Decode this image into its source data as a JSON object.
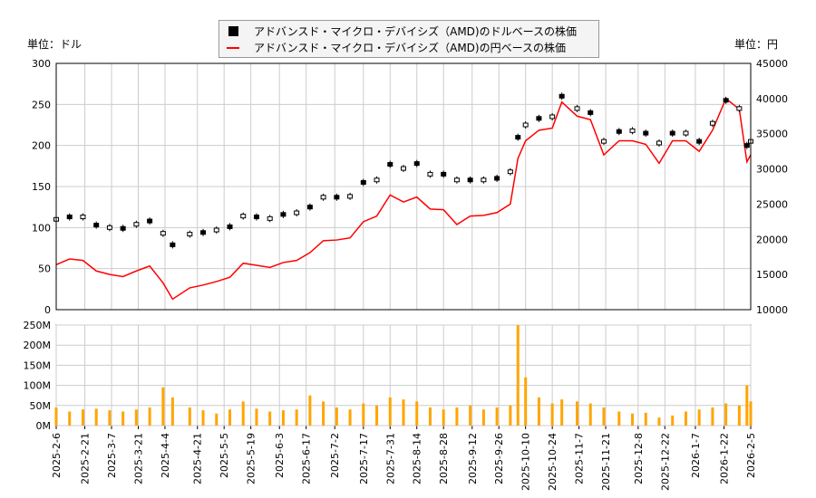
{
  "chart_data": {
    "type": "line",
    "left_unit": "単位：ドル",
    "right_unit": "単位：円",
    "legend": [
      {
        "name": "アドバンスド・マイクロ・デバイシズ（AMD)のドルベースの株価",
        "color": "#000000"
      },
      {
        "name": "アドバンスド・マイクロ・デバイシズ（AMD)の円ベースの株価",
        "color": "#ff0000"
      }
    ],
    "y_left": {
      "range": [
        0,
        300
      ],
      "ticks": [
        0,
        50,
        100,
        150,
        200,
        250,
        300
      ]
    },
    "y_right": {
      "range": [
        10000,
        45000
      ],
      "ticks": [
        10000,
        15000,
        20000,
        25000,
        30000,
        35000,
        40000,
        45000
      ]
    },
    "volume": {
      "range": [
        0,
        250
      ],
      "ticks": [
        "0M",
        "50M",
        "100M",
        "150M",
        "200M",
        "250M"
      ],
      "color": "#ffa500"
    },
    "x_ticks": [
      "2025-2-6",
      "2025-2-21",
      "2025-3-7",
      "2025-3-21",
      "2025-4-4",
      "2025-4-21",
      "2025-5-5",
      "2025-5-19",
      "2025-6-3",
      "2025-6-17",
      "2025-7-2",
      "2025-7-17",
      "2025-7-31",
      "2025-8-14",
      "2025-8-28",
      "2025-9-12",
      "2025-9-26",
      "2025-10-10",
      "2025-10-24",
      "2025-11-7",
      "2025-11-21",
      "2025-12-8",
      "2025-12-22",
      "2026-1-7",
      "2026-1-22",
      "2026-2-5"
    ],
    "grid": true,
    "dates": [
      "2025-02-06",
      "2025-02-13",
      "2025-02-20",
      "2025-02-27",
      "2025-03-06",
      "2025-03-13",
      "2025-03-20",
      "2025-03-27",
      "2025-04-03",
      "2025-04-08",
      "2025-04-17",
      "2025-04-24",
      "2025-05-01",
      "2025-05-08",
      "2025-05-15",
      "2025-05-22",
      "2025-05-29",
      "2025-06-05",
      "2025-06-12",
      "2025-06-19",
      "2025-06-26",
      "2025-07-03",
      "2025-07-10",
      "2025-07-17",
      "2025-07-24",
      "2025-07-31",
      "2025-08-07",
      "2025-08-14",
      "2025-08-21",
      "2025-08-28",
      "2025-09-04",
      "2025-09-11",
      "2025-09-18",
      "2025-09-25",
      "2025-10-02",
      "2025-10-06",
      "2025-10-10",
      "2025-10-17",
      "2025-10-24",
      "2025-10-29",
      "2025-11-06",
      "2025-11-13",
      "2025-11-20",
      "2025-11-28",
      "2025-12-05",
      "2025-12-12",
      "2025-12-19",
      "2025-12-26",
      "2026-01-02",
      "2026-01-09",
      "2026-01-16",
      "2026-01-23",
      "2026-01-30",
      "2026-02-03",
      "2026-02-05"
    ],
    "usd": [
      110,
      113,
      113,
      103,
      100,
      99,
      104,
      108,
      93,
      79,
      92,
      94,
      97,
      101,
      114,
      113,
      111,
      116,
      118,
      125,
      137,
      137,
      138,
      155,
      158,
      177,
      172,
      178,
      165,
      165,
      158,
      158,
      158,
      160,
      168,
      210,
      225,
      233,
      235,
      260,
      245,
      240,
      205,
      217,
      218,
      215,
      203,
      215,
      215,
      205,
      227,
      255,
      245,
      200,
      205
    ],
    "jpy": [
      16400,
      17200,
      17000,
      15500,
      15000,
      14700,
      15500,
      16200,
      13800,
      11500,
      13100,
      13500,
      14000,
      14600,
      16600,
      16300,
      16000,
      16700,
      17000,
      18100,
      19800,
      19900,
      20200,
      22500,
      23300,
      26300,
      25300,
      26000,
      24300,
      24200,
      22100,
      23300,
      23400,
      23800,
      25000,
      31500,
      34000,
      35500,
      35800,
      39500,
      37500,
      37000,
      32000,
      34000,
      34000,
      33500,
      30800,
      34000,
      34000,
      32500,
      35500,
      40000,
      38500,
      31000,
      32000
    ],
    "volume_m": [
      45,
      35,
      40,
      42,
      38,
      35,
      40,
      45,
      95,
      70,
      45,
      38,
      30,
      40,
      60,
      42,
      35,
      38,
      40,
      75,
      60,
      45,
      40,
      55,
      50,
      70,
      65,
      60,
      45,
      40,
      45,
      50,
      40,
      45,
      50,
      250,
      120,
      70,
      55,
      65,
      60,
      55,
      45,
      35,
      30,
      32,
      20,
      25,
      35,
      40,
      45,
      55,
      50,
      100,
      60
    ]
  }
}
